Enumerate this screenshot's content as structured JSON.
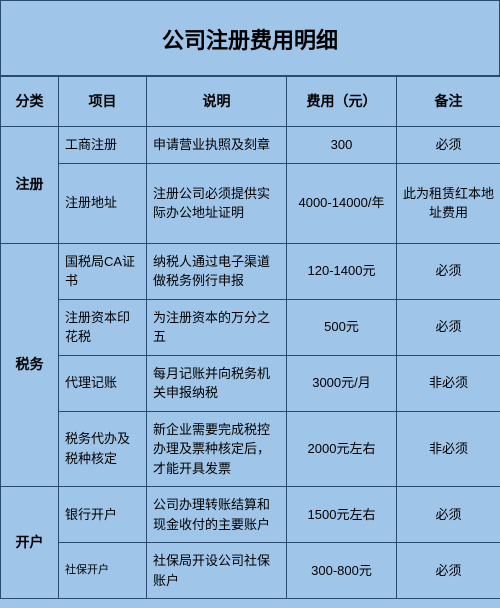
{
  "title": "公司注册费用明细",
  "headers": {
    "category": "分类",
    "item": "项目",
    "desc": "说明",
    "fee": "费用（元）",
    "note": "备注"
  },
  "colors": {
    "background": "#9fc5e8",
    "border": "#2b4a6f",
    "text": "#000000"
  },
  "categories": [
    {
      "name": "注册",
      "rows": [
        {
          "item": "工商注册",
          "desc": "申请营业执照及刻章",
          "fee": "300",
          "note": "必须"
        },
        {
          "item": "注册地址",
          "desc": "注册公司必须提供实际办公地址证明",
          "fee": "4000-14000/年",
          "note": "此为租赁红本地址费用"
        }
      ]
    },
    {
      "name": "税务",
      "rows": [
        {
          "item": "国税局CA证书",
          "desc": "纳税人通过电子渠道做税务例行申报",
          "fee": "120-1400元",
          "note": "必须"
        },
        {
          "item": "注册资本印花税",
          "desc": "为注册资本的万分之五",
          "fee": "500元",
          "note": "必须"
        },
        {
          "item": "代理记账",
          "desc": "每月记账并向税务机关申报纳税",
          "fee": "3000元/月",
          "note": "非必须"
        },
        {
          "item": "税务代办及税种核定",
          "desc": "新企业需要完成税控办理及票种核定后，才能开具发票",
          "fee": "2000元左右",
          "note": "非必须"
        }
      ]
    },
    {
      "name": "开户",
      "rows": [
        {
          "item": "银行开户",
          "desc": "公司办理转账结算和现金收付的主要账户",
          "fee": "1500元左右",
          "note": "必须"
        },
        {
          "item": "社保开户",
          "desc": "社保局开设公司社保账户",
          "fee": "300-800元",
          "note": "必须"
        }
      ]
    }
  ]
}
